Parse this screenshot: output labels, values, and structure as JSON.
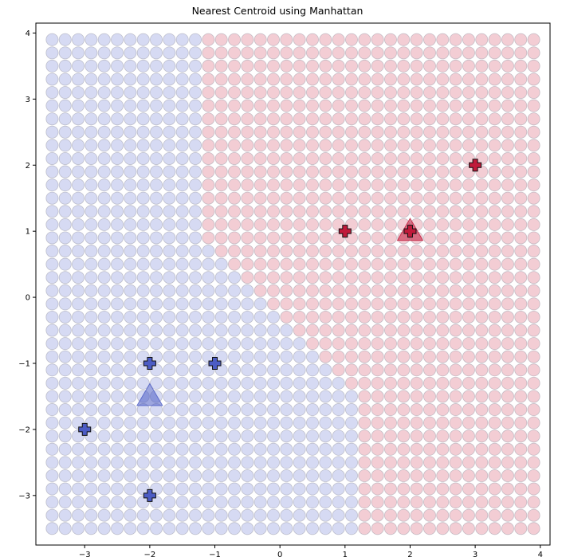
{
  "chart_data": {
    "type": "scatter",
    "title": "Nearest Centroid using Manhattan",
    "xlabel": "",
    "ylabel": "",
    "xlim": [
      -3.75,
      4.15
    ],
    "ylim": [
      -3.75,
      4.15
    ],
    "xticks": [
      -3,
      -2,
      -1,
      0,
      1,
      2,
      3,
      4
    ],
    "yticks": [
      -3,
      -2,
      -1,
      0,
      1,
      2,
      3,
      4
    ],
    "grid": false,
    "colors": {
      "class_blue": "#4c5cc4",
      "class_red": "#c01a3a",
      "region_blue_fill": "#c8cdef",
      "region_red_fill": "#efbcc6"
    },
    "decision_grid": {
      "x_start": -3.5,
      "x_stop": 3.9,
      "y_start": -3.5,
      "y_stop": 3.9,
      "step": 0.2,
      "rule": "each grid point colored by nearest centroid under Manhattan (L1) distance"
    },
    "series": [
      {
        "class": "blue",
        "marker": "plus",
        "points": [
          [
            -2,
            -1
          ],
          [
            -1,
            -1
          ],
          [
            -3,
            -2
          ],
          [
            -2,
            -3
          ]
        ]
      },
      {
        "class": "red",
        "marker": "plus",
        "points": [
          [
            1,
            1
          ],
          [
            2,
            1
          ],
          [
            3,
            2
          ]
        ]
      }
    ],
    "centroids": [
      {
        "class": "blue",
        "marker": "triangle",
        "x": -2,
        "y": -1.5
      },
      {
        "class": "red",
        "marker": "triangle",
        "x": 2,
        "y": 1
      }
    ]
  }
}
